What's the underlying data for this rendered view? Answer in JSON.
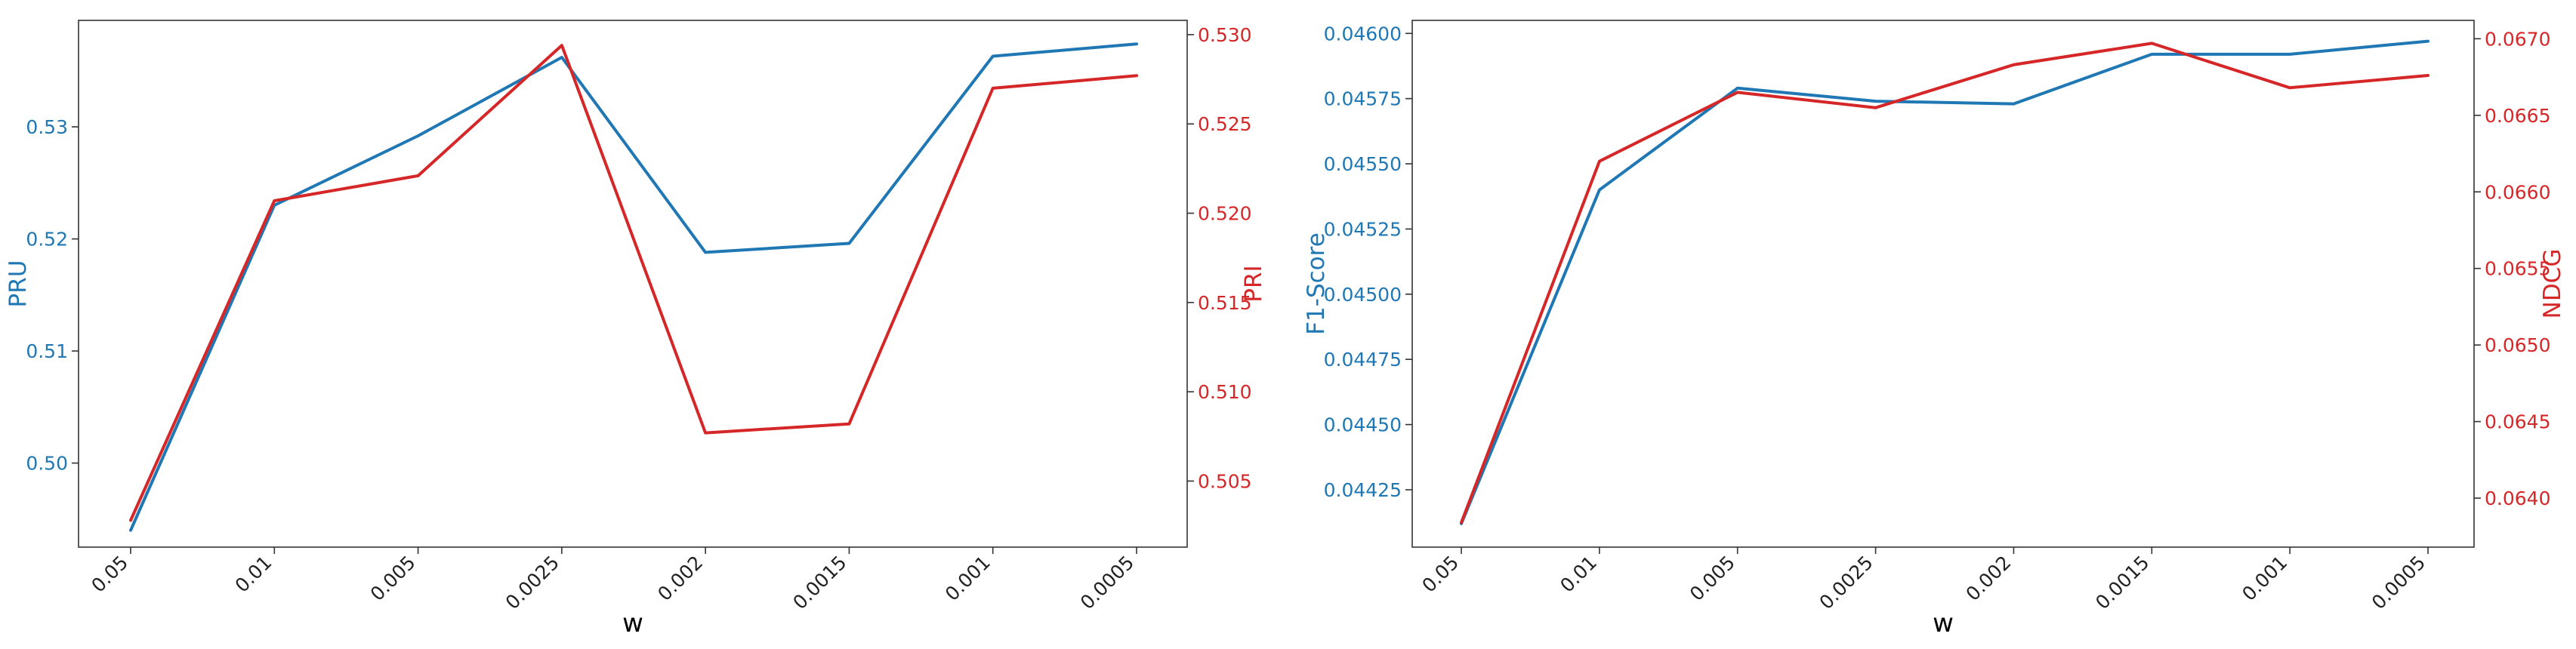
{
  "chart_data": [
    {
      "type": "line",
      "xlabel": "w",
      "categories": [
        "0.05",
        "0.01",
        "0.005",
        "0.0025",
        "0.002",
        "0.0015",
        "0.001",
        "0.0005"
      ],
      "left_axis": {
        "label": "PRU",
        "color": "#1f77b4",
        "ylim": [
          0.4925,
          0.5395
        ],
        "ticks": [
          "0.50",
          "0.51",
          "0.52",
          "0.53"
        ]
      },
      "right_axis": {
        "label": "PRI",
        "color": "#d62728",
        "ylim": [
          0.5013,
          0.5308
        ],
        "ticks": [
          "0.505",
          "0.510",
          "0.515",
          "0.520",
          "0.525",
          "0.530"
        ]
      },
      "series": [
        {
          "name": "PRU",
          "axis": "left",
          "color": "#1f77b4",
          "values": [
            0.494,
            0.523,
            0.5292,
            0.5362,
            0.5188,
            0.5196,
            0.5363,
            0.5374
          ]
        },
        {
          "name": "PRI",
          "axis": "right",
          "color": "#d62728",
          "values": [
            0.5028,
            0.5207,
            0.5221,
            0.5294,
            0.5077,
            0.5082,
            0.527,
            0.5277
          ]
        }
      ],
      "grid": false,
      "legend": "none"
    },
    {
      "type": "line",
      "xlabel": "w",
      "categories": [
        "0.05",
        "0.01",
        "0.005",
        "0.0025",
        "0.002",
        "0.0015",
        "0.001",
        "0.0005"
      ],
      "left_axis": {
        "label": "F1-Score",
        "color": "#1f77b4",
        "ylim": [
          0.04403,
          0.04605
        ],
        "ticks": [
          "0.04425",
          "0.04450",
          "0.04475",
          "0.04500",
          "0.04525",
          "0.04550",
          "0.04575",
          "0.04600"
        ]
      },
      "right_axis": {
        "label": "NDCG",
        "color": "#d62728",
        "ylim": [
          0.06368,
          0.06712
        ],
        "ticks": [
          "0.0640",
          "0.0645",
          "0.0650",
          "0.0655",
          "0.0660",
          "0.0665",
          "0.0670"
        ]
      },
      "series": [
        {
          "name": "F1-Score",
          "axis": "left",
          "color": "#1f77b4",
          "values": [
            0.04412,
            0.0454,
            0.04579,
            0.04574,
            0.04573,
            0.04592,
            0.04592,
            0.04597
          ]
        },
        {
          "name": "NDCG",
          "axis": "right",
          "color": "#d62728",
          "values": [
            0.06384,
            0.0662,
            0.06665,
            0.06655,
            0.06683,
            0.06697,
            0.06668,
            0.06676
          ]
        }
      ],
      "grid": false,
      "legend": "none"
    }
  ]
}
